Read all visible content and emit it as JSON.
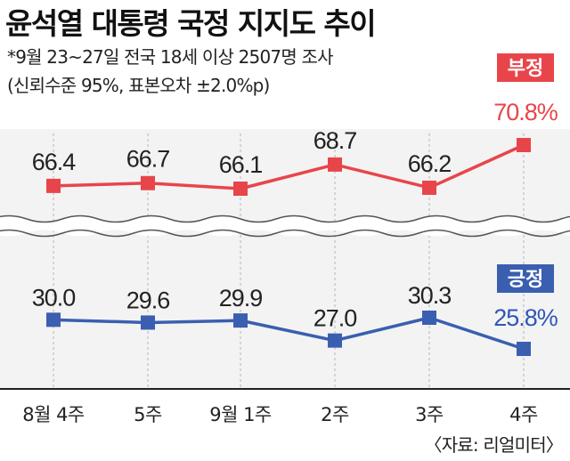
{
  "header": {
    "title": "윤석열 대통령 국정 지지도 추이",
    "subtitle1": "*9월 23~27일 전국 18세 이상 2507명 조사",
    "subtitle2": "(신뢰수준 95%, 표본오차 ±2.0%p)"
  },
  "source": "〈자료: 리얼미터〉",
  "colors": {
    "negative": "#e8454a",
    "positive": "#3a5fb0",
    "negative_label_text": "#e8454a",
    "positive_label_text": "#2f56b8"
  },
  "chart_data": {
    "type": "line",
    "title": "윤석열 대통령 국정 지지도 추이",
    "categories": [
      "8월 4주",
      "5주",
      "9월 1주",
      "2주",
      "3주",
      "4주"
    ],
    "series": [
      {
        "key": "negative",
        "name": "부정",
        "values": [
          66.4,
          66.7,
          66.1,
          68.7,
          66.2,
          70.8
        ],
        "labels": [
          "66.4",
          "66.7",
          "66.1",
          "68.7",
          "66.2",
          "70.8%"
        ],
        "ylim": [
          63,
          72
        ]
      },
      {
        "key": "positive",
        "name": "긍정",
        "values": [
          30.0,
          29.6,
          29.9,
          27.0,
          30.3,
          25.8
        ],
        "labels": [
          "30.0",
          "29.6",
          "29.9",
          "27.0",
          "30.3",
          "25.8%"
        ],
        "ylim": [
          24,
          32
        ]
      }
    ],
    "axis_break": true,
    "unit": "%"
  }
}
